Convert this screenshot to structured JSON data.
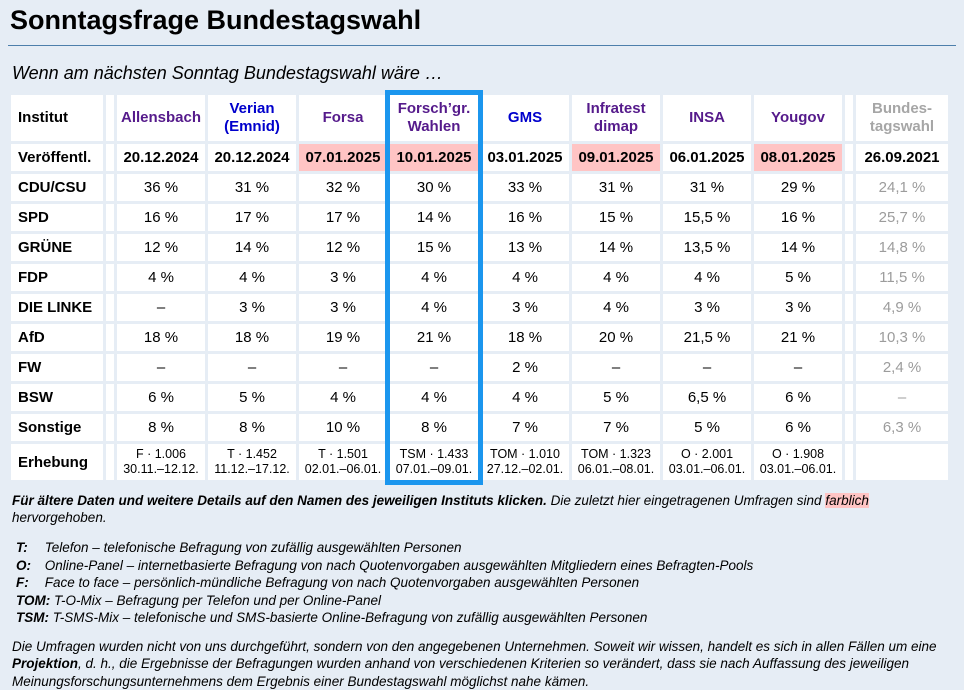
{
  "header": {
    "title": "Sonntagsfrage Bundestagswahl",
    "subtitle": "Wenn am nächsten Sonntag Bundestagswahl wäre …"
  },
  "table": {
    "corner": "Institut",
    "published_label": "Veröffentl.",
    "survey_label": "Erhebung",
    "institutes": [
      {
        "id": "allensbach",
        "label": "Allensbach",
        "published": "20.12.2024",
        "highlighted": false,
        "survey": "F · 1.006\n30.11.–12.12."
      },
      {
        "id": "verian",
        "label": "Verian (Emnid)",
        "published": "20.12.2024",
        "highlighted": false,
        "survey": "T · 1.452\n11.12.–17.12."
      },
      {
        "id": "forsa",
        "label": "Forsa",
        "published": "07.01.2025",
        "highlighted": true,
        "survey": "T · 1.501\n02.01.–06.01."
      },
      {
        "id": "forschgr",
        "label": "Forsch’gr. Wahlen",
        "published": "10.01.2025",
        "highlighted": true,
        "survey": "TSM · 1.433\n07.01.–09.01."
      },
      {
        "id": "gms",
        "label": "GMS",
        "published": "03.01.2025",
        "highlighted": false,
        "survey": "TOM · 1.010\n27.12.–02.01."
      },
      {
        "id": "infratest",
        "label": "Infratest dimap",
        "published": "09.01.2025",
        "highlighted": true,
        "survey": "TOM · 1.323\n06.01.–08.01."
      },
      {
        "id": "insa",
        "label": "INSA",
        "published": "06.01.2025",
        "highlighted": false,
        "survey": "O · 2.001\n03.01.–06.01."
      },
      {
        "id": "yougov",
        "label": "Yougov",
        "published": "08.01.2025",
        "highlighted": true,
        "survey": "O · 1.908\n03.01.–06.01."
      }
    ],
    "bundestagswahl": {
      "label": "Bundes-\ntagswahl",
      "published": "26.09.2021",
      "survey": ""
    },
    "parties": [
      {
        "label": "CDU/CSU",
        "values": [
          "36 %",
          "31 %",
          "32 %",
          "30 %",
          "33 %",
          "31 %",
          "31 %",
          "29 %",
          "24,1 %"
        ]
      },
      {
        "label": "SPD",
        "values": [
          "16 %",
          "17 %",
          "17 %",
          "14 %",
          "16 %",
          "15 %",
          "15,5 %",
          "16 %",
          "25,7 %"
        ]
      },
      {
        "label": "GRÜNE",
        "values": [
          "12 %",
          "14 %",
          "12 %",
          "15 %",
          "13 %",
          "14 %",
          "13,5 %",
          "14 %",
          "14,8 %"
        ]
      },
      {
        "label": "FDP",
        "values": [
          "4 %",
          "4 %",
          "3 %",
          "4 %",
          "4 %",
          "4 %",
          "4 %",
          "5 %",
          "11,5 %"
        ]
      },
      {
        "label": "DIE LINKE",
        "values": [
          "–",
          "3 %",
          "3 %",
          "4 %",
          "3 %",
          "4 %",
          "3 %",
          "3 %",
          "4,9 %"
        ]
      },
      {
        "label": "AfD",
        "values": [
          "18 %",
          "18 %",
          "19 %",
          "21 %",
          "18 %",
          "20 %",
          "21,5 %",
          "21 %",
          "10,3 %"
        ]
      },
      {
        "label": "FW",
        "values": [
          "–",
          "–",
          "–",
          "–",
          "2 %",
          "–",
          "–",
          "–",
          "2,4 %"
        ]
      },
      {
        "label": "BSW",
        "values": [
          "6 %",
          "5 %",
          "4 %",
          "4 %",
          "4 %",
          "5 %",
          "6,5 %",
          "6 %",
          "–"
        ]
      },
      {
        "label": "Sonstige",
        "values": [
          "8 %",
          "8 %",
          "10 %",
          "8 %",
          "7 %",
          "7 %",
          "5 %",
          "6 %",
          "6,3 %"
        ]
      }
    ],
    "selected_column": {
      "institute": "Forsch’gr. Wahlen",
      "frame_color": "#1b96ee"
    },
    "highlight_color": "#ffc4c4"
  },
  "footer": {
    "click_note": "Für ältere Daten und weitere Details auf den Namen des jeweiligen Instituts klicken.",
    "note_a": " Die zuletzt hier eingetragenen Umfragen sind ",
    "note_hl": "farblich",
    "note_b": "hervorgehoben."
  },
  "legend": {
    "items": [
      {
        "key": "T:",
        "text": "Telefon – telefonische Befragung von zufällig ausgewählten Personen"
      },
      {
        "key": "O:",
        "text": "Online-Panel – internetbasierte Befragung von nach Quotenvorgaben ausgewählten Mitgliedern eines Befragten-Pools"
      },
      {
        "key": "F:",
        "text": "Face to face – persönlich-mündliche Befragung von nach Quotenvorgaben ausgewählten Personen"
      },
      {
        "key": "TOM:",
        "text": "T-O-Mix – Befragung per Telefon und per Online-Panel"
      },
      {
        "key": "TSM:",
        "text": "T-SMS-Mix – telefonische und SMS-basierte Online-Befragung von zufällig ausgewählten Personen"
      }
    ]
  },
  "disclaimer": {
    "part1": "Die Umfragen wurden nicht von uns durchgeführt, sondern von den angegebenen Unternehmen. Soweit wir wissen, handelt es sich in allen Fällen um eine ",
    "bold": "Projektion",
    "part2": ", d. h., die Ergebnisse der Befragungen wurden anhand von verschiedenen Kriterien so verändert, dass sie nach Auffassung des jeweiligen Meinungsforschungsunternehmens dem Ergebnis einer Bundestagswahl möglichst nahe kämen."
  }
}
